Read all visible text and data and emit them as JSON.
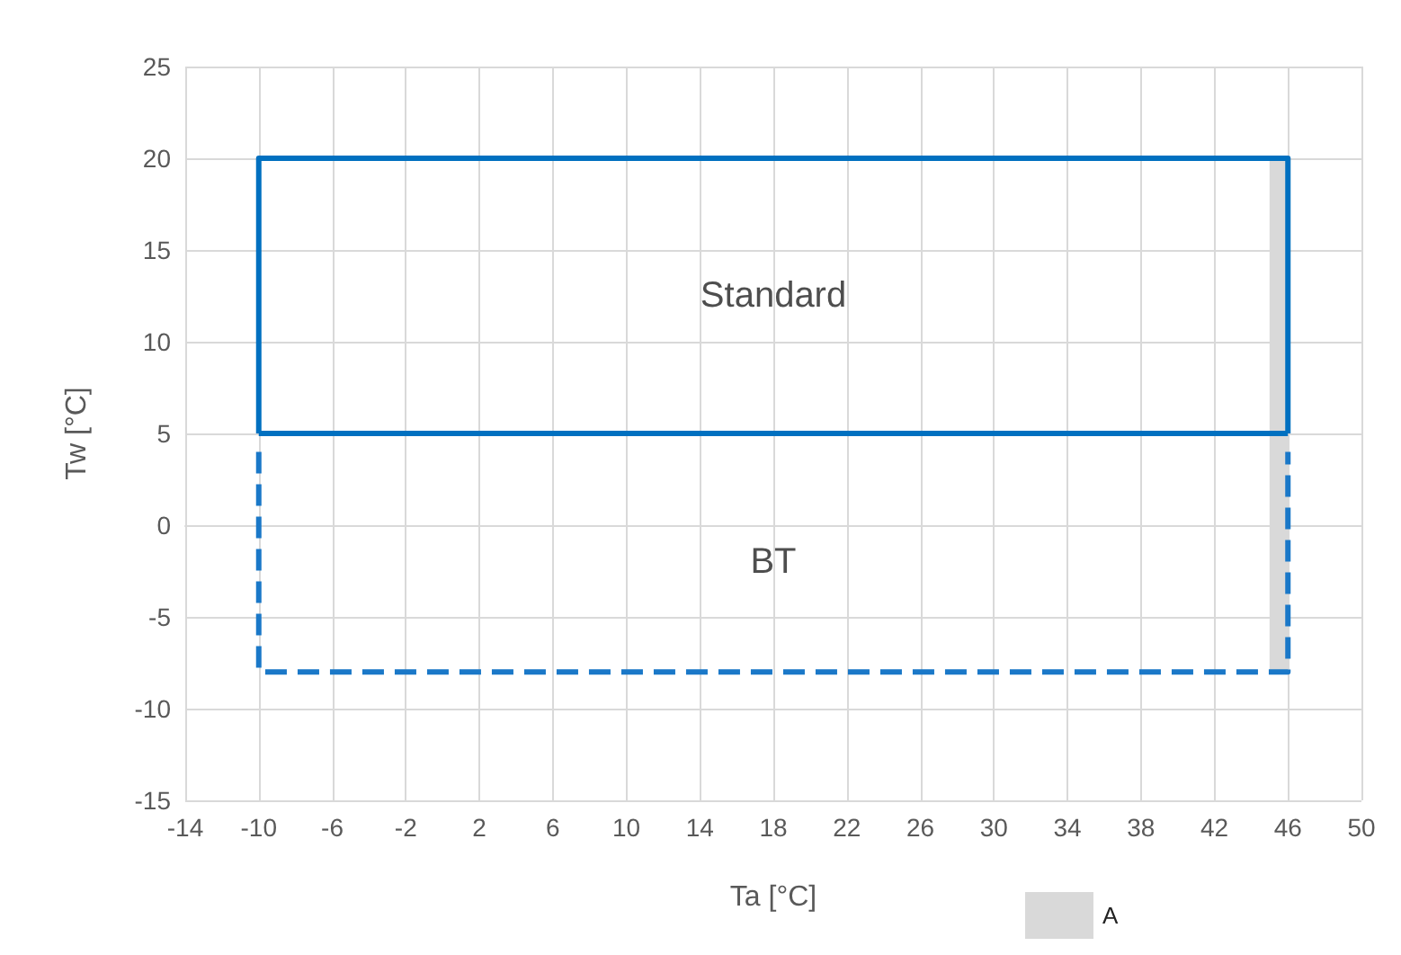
{
  "chart_data": {
    "type": "line",
    "xlabel": "Ta [°C]",
    "ylabel": "Tw [°C]",
    "xlim": [
      -14,
      50
    ],
    "xticks": [
      -14,
      -10,
      -6,
      -2,
      2,
      6,
      10,
      14,
      18,
      22,
      26,
      30,
      34,
      38,
      42,
      46,
      50
    ],
    "ylim": [
      -15,
      25
    ],
    "yticks": [
      -15,
      -10,
      -5,
      0,
      5,
      10,
      15,
      20,
      25
    ],
    "grid": true,
    "legend": "bottom",
    "marker": "none",
    "series": [
      {
        "color": "#0070c0",
        "line_style": "solid",
        "x": [
          -10,
          -10,
          46,
          46
        ],
        "values": [
          5,
          20,
          20,
          5
        ]
      },
      {
        "color": "#0070c0",
        "line_style": "solid",
        "x": [
          -10,
          46
        ],
        "values": [
          5,
          5
        ]
      },
      {
        "color": "#1a78c8",
        "line_style": "dashed",
        "x": [
          -10,
          -10,
          46,
          46
        ],
        "values": [
          4,
          -8,
          -8,
          4
        ]
      },
      {
        "name": "A",
        "type": "bar",
        "color": "#d9d9d9",
        "x": [
          45.5
        ],
        "values": [
          28
        ],
        "base": [
          -8
        ]
      }
    ],
    "annotations": [
      "Standard",
      "BT"
    ]
  }
}
